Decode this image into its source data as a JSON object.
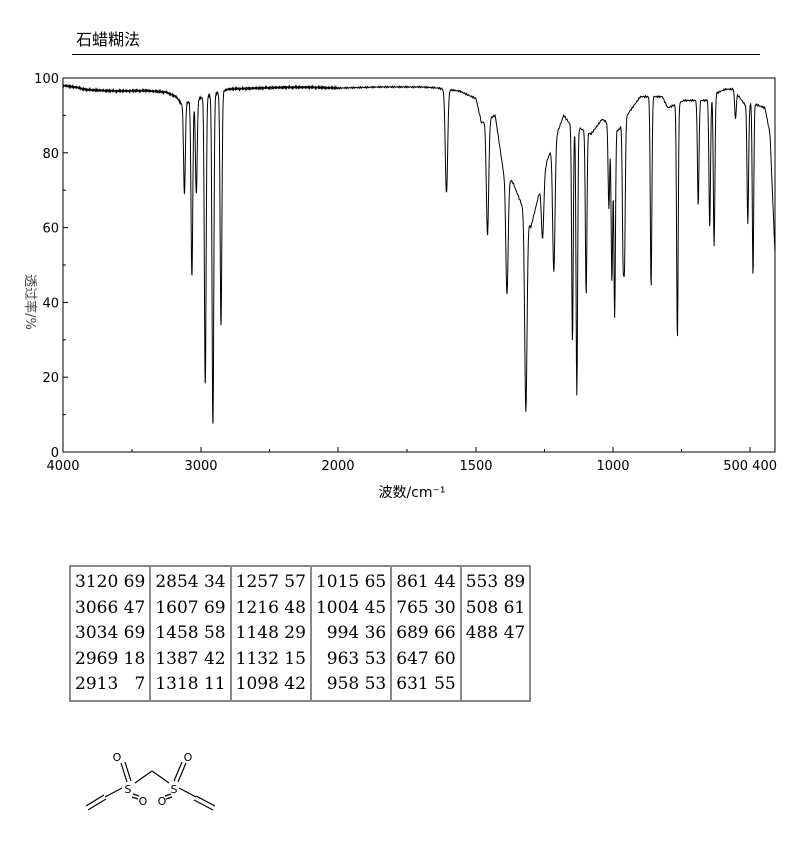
{
  "method_label": "石蜡糊法",
  "chart_data": {
    "type": "line",
    "title": "",
    "xlabel": "波数/cm⁻¹",
    "ylabel": "透过率/%",
    "xlim": [
      4000,
      400
    ],
    "ylim": [
      0,
      100
    ],
    "x_ticks": [
      4000,
      3000,
      2000,
      1500,
      1000,
      500,
      400
    ],
    "x_tick_labels": [
      "4000",
      "3000",
      "2000",
      "1500",
      "1000",
      "500 400"
    ],
    "y_ticks": [
      0,
      20,
      40,
      60,
      80,
      100
    ],
    "y_tick_labels": [
      "0",
      "20",
      "40",
      "60",
      "80",
      "100"
    ],
    "grid": false,
    "baseline": [
      [
        4000,
        98
      ],
      [
        3900,
        97.5
      ],
      [
        3850,
        97
      ],
      [
        3800,
        96.8
      ],
      [
        3600,
        96.5
      ],
      [
        3400,
        96.6
      ],
      [
        3250,
        96.2
      ],
      [
        3180,
        95
      ],
      [
        3140,
        93
      ],
      [
        2800,
        97
      ],
      [
        2600,
        97.3
      ],
      [
        2400,
        97.5
      ],
      [
        2200,
        97.5
      ],
      [
        2000,
        97.3
      ],
      [
        1850,
        97.6
      ],
      [
        1700,
        97.6
      ],
      [
        1650,
        97.4
      ],
      [
        1560,
        96.5
      ],
      [
        1500,
        94.5
      ],
      [
        1480,
        88
      ],
      [
        1430,
        90
      ],
      [
        1400,
        75
      ],
      [
        1365,
        72
      ],
      [
        1300,
        60
      ],
      [
        1240,
        78
      ],
      [
        1180,
        90
      ],
      [
        1160,
        88
      ],
      [
        1080,
        85
      ],
      [
        1040,
        89
      ],
      [
        1020,
        88
      ],
      [
        980,
        86
      ],
      [
        940,
        91
      ],
      [
        900,
        95
      ],
      [
        860,
        95
      ],
      [
        820,
        95
      ],
      [
        800,
        92
      ],
      [
        740,
        94
      ],
      [
        700,
        94
      ],
      [
        660,
        94
      ],
      [
        620,
        96
      ],
      [
        590,
        97
      ],
      [
        560,
        97
      ],
      [
        530,
        94
      ],
      [
        520,
        93
      ],
      [
        480,
        93
      ],
      [
        440,
        92
      ],
      [
        420,
        85
      ],
      [
        400,
        53
      ]
    ],
    "peaks": [
      {
        "x": 3120,
        "y": 69
      },
      {
        "x": 3066,
        "y": 47
      },
      {
        "x": 3034,
        "y": 69
      },
      {
        "x": 2969,
        "y": 18
      },
      {
        "x": 2913,
        "y": 7
      },
      {
        "x": 2854,
        "y": 34
      },
      {
        "x": 1607,
        "y": 69
      },
      {
        "x": 1458,
        "y": 58
      },
      {
        "x": 1387,
        "y": 42
      },
      {
        "x": 1318,
        "y": 11
      },
      {
        "x": 1257,
        "y": 57
      },
      {
        "x": 1216,
        "y": 48
      },
      {
        "x": 1148,
        "y": 29
      },
      {
        "x": 1132,
        "y": 15
      },
      {
        "x": 1098,
        "y": 42
      },
      {
        "x": 1015,
        "y": 65
      },
      {
        "x": 1004,
        "y": 45
      },
      {
        "x": 994,
        "y": 36
      },
      {
        "x": 963,
        "y": 53
      },
      {
        "x": 958,
        "y": 53
      },
      {
        "x": 861,
        "y": 44
      },
      {
        "x": 765,
        "y": 30
      },
      {
        "x": 689,
        "y": 66
      },
      {
        "x": 647,
        "y": 60
      },
      {
        "x": 631,
        "y": 55
      },
      {
        "x": 553,
        "y": 89
      },
      {
        "x": 508,
        "y": 61
      },
      {
        "x": 488,
        "y": 47
      }
    ]
  },
  "peak_table": {
    "columns": [
      [
        "3120 69",
        "3066 47",
        "3034 69",
        "2969 18",
        "2913   7"
      ],
      [
        "2854 34",
        "1607 69",
        "1458 58",
        "1387 42",
        "1318 11"
      ],
      [
        "1257 57",
        "1216 48",
        "1148 29",
        "1132 15",
        "1098 42"
      ],
      [
        "1015 65",
        "1004 45",
        "  994 36",
        "  963 53",
        "  958 53"
      ],
      [
        "861 44",
        "765 30",
        "689 66",
        "647 60",
        "631 55"
      ],
      [
        "553 89",
        "508 61",
        "488 47"
      ]
    ]
  },
  "structure": {
    "atoms": [
      "S",
      "S",
      "O",
      "O",
      "O",
      "O"
    ]
  }
}
